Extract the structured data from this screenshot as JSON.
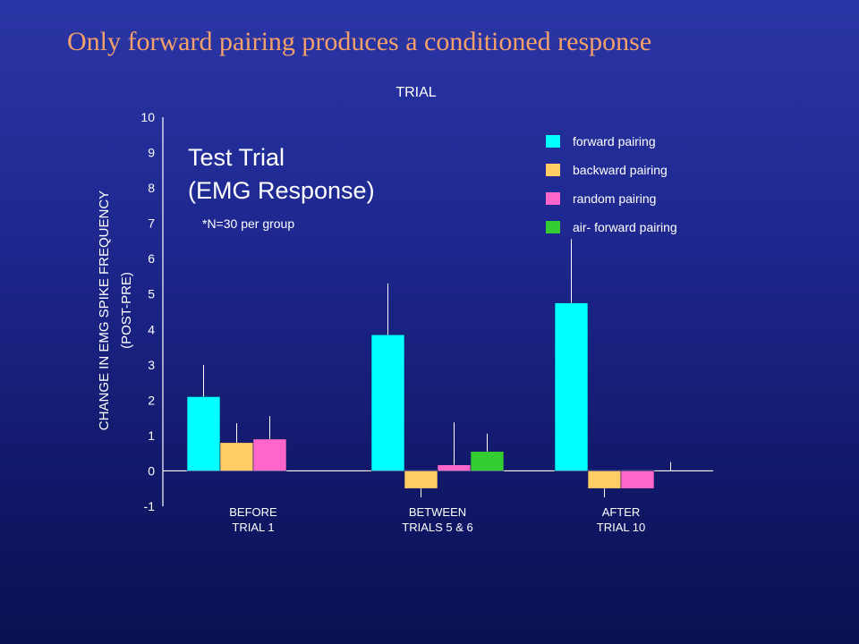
{
  "slide": {
    "title": "Only forward pairing produces a conditioned response",
    "colors": {
      "title": "#f4a06a",
      "text": "#ffffff",
      "background": "#1e2890"
    }
  },
  "chart_data": {
    "type": "bar",
    "title": "TRIAL",
    "inset_title_lines": [
      "Test Trial",
      "(EMG Response)"
    ],
    "annotation": "*N=30 per group",
    "ylabel_lines": [
      "CHANGE IN EMG SPIKE FREQUENCY",
      "(POST-PRE)"
    ],
    "ylim": [
      -1,
      10
    ],
    "yticks": [
      -1,
      0,
      1,
      2,
      3,
      4,
      5,
      6,
      7,
      8,
      9,
      10
    ],
    "grid": false,
    "legend_position": "top-right",
    "categories": [
      [
        "BEFORE",
        "TRIAL 1"
      ],
      [
        "BETWEEN",
        "TRIALS 5 & 6"
      ],
      [
        "AFTER",
        "TRIAL 10"
      ]
    ],
    "series": [
      {
        "name": "forward pairing",
        "color": "#00ffff",
        "values": [
          2.1,
          3.85,
          4.75
        ],
        "error": [
          0.9,
          1.45,
          1.8
        ]
      },
      {
        "name": "backward pairing",
        "color": "#ffcc66",
        "values": [
          0.8,
          -0.5,
          -0.5
        ],
        "error": [
          0.55,
          0.25,
          0.25
        ]
      },
      {
        "name": "random pairing",
        "color": "#ff66cc",
        "values": [
          0.9,
          0.17,
          -0.5
        ],
        "error": [
          0.65,
          1.2,
          0
        ]
      },
      {
        "name": "air- forward pairing",
        "color": "#33cc33",
        "values": [
          null,
          0.55,
          null
        ],
        "error": [
          0,
          0.5,
          0.25
        ]
      }
    ]
  }
}
